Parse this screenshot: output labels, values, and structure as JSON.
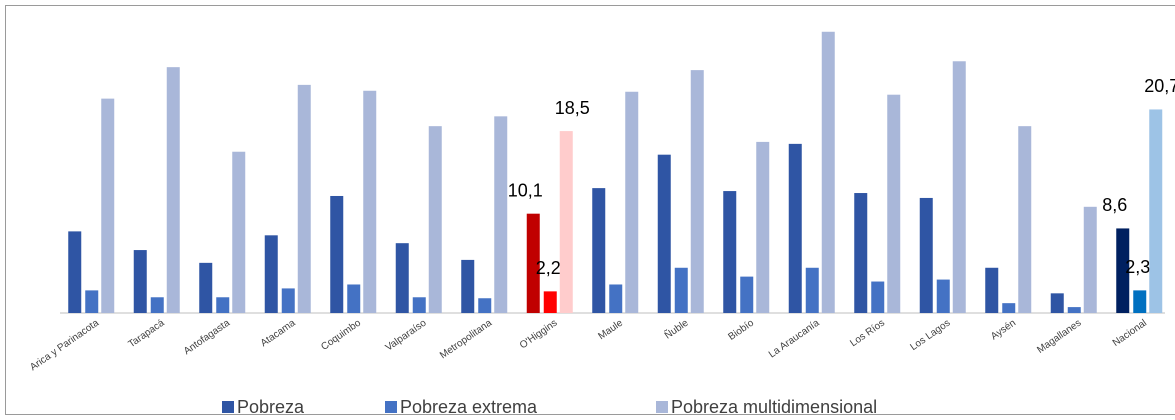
{
  "chart_data": {
    "type": "bar",
    "categories": [
      "Arica y Parinacota",
      "Tarapacá",
      "Antofagasta",
      "Atacama",
      "Coquimbo",
      "Valparaíso",
      "Metropolitana",
      "O'Higgins",
      "Maule",
      "Ñuble",
      "Biobío",
      "La Araucanía",
      "Los Ríos",
      "Los Lagos",
      "Aysén",
      "Magallanes",
      "Nacional"
    ],
    "series": [
      {
        "name": "Pobreza",
        "color": "#2f55a4",
        "highlight_colors": {
          "7": "#c00000",
          "16": "#002060"
        },
        "values": [
          8.3,
          6.4,
          5.1,
          7.9,
          11.9,
          7.1,
          5.4,
          10.1,
          12.7,
          16.1,
          12.4,
          17.2,
          12.2,
          11.7,
          4.6,
          2.0,
          8.6
        ],
        "value_labels": [
          null,
          null,
          null,
          null,
          null,
          null,
          null,
          "10,1",
          null,
          null,
          null,
          null,
          null,
          null,
          null,
          null,
          "8,6"
        ]
      },
      {
        "name": "Pobreza extrema",
        "color": "#4472c4",
        "highlight_colors": {
          "7": "#ff0000",
          "16": "#0070c0"
        },
        "values": [
          2.3,
          1.6,
          1.6,
          2.5,
          2.9,
          1.6,
          1.5,
          2.2,
          2.9,
          4.6,
          3.7,
          4.6,
          3.2,
          3.4,
          1.0,
          0.6,
          2.3
        ],
        "value_labels": [
          null,
          null,
          null,
          null,
          null,
          null,
          null,
          "2,2",
          null,
          null,
          null,
          null,
          null,
          null,
          null,
          null,
          "2,3"
        ]
      },
      {
        "name": "Pobreza multidimensional",
        "color": "#a9b7d9",
        "highlight_colors": {
          "7": "#ffcccc",
          "16": "#9dc3e6"
        },
        "values": [
          21.8,
          25.0,
          16.4,
          23.2,
          22.6,
          19.0,
          20.0,
          18.5,
          22.5,
          24.7,
          17.4,
          28.6,
          22.2,
          25.6,
          19.0,
          10.8,
          20.7
        ],
        "value_labels": [
          null,
          null,
          null,
          null,
          null,
          null,
          null,
          "18,5",
          null,
          null,
          null,
          null,
          null,
          null,
          null,
          null,
          "20,7"
        ]
      }
    ],
    "ylim": [
      0,
      30
    ]
  }
}
